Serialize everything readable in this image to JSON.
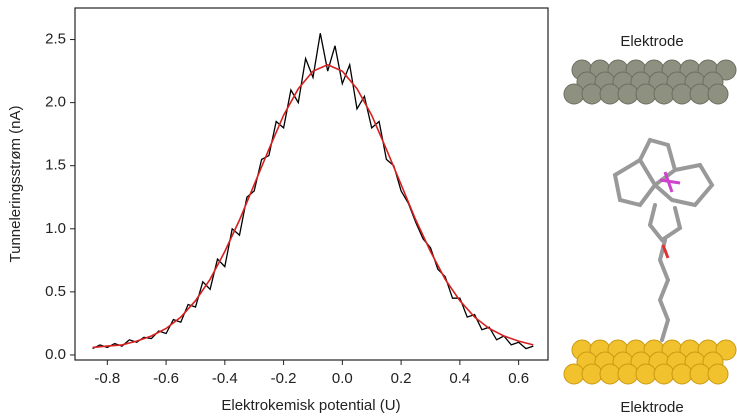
{
  "chart_data": {
    "type": "line",
    "xlabel": "Elektrokemisk potential (U)",
    "ylabel": "Tunneleringsstrøm (nA)",
    "xlim": [
      -0.91,
      0.7
    ],
    "ylim": [
      -0.04,
      2.75
    ],
    "xticks": [
      -0.8,
      -0.6,
      -0.4,
      -0.2,
      {
        "value": 0,
        "label": "0.0"
      },
      0.2,
      0.4,
      0.6
    ],
    "yticks": [
      {
        "value": 0,
        "label": "0.0"
      },
      0.5,
      {
        "value": 1,
        "label": "1.0"
      },
      1.5,
      {
        "value": 2,
        "label": "2.0"
      },
      2.5
    ],
    "series": [
      {
        "color": "#000000",
        "x": [
          -0.85,
          -0.825,
          -0.8,
          -0.775,
          -0.75,
          -0.725,
          -0.7,
          -0.675,
          -0.65,
          -0.625,
          -0.6,
          -0.575,
          -0.55,
          -0.525,
          -0.5,
          -0.475,
          -0.45,
          -0.425,
          -0.4,
          -0.375,
          -0.35,
          -0.325,
          -0.3,
          -0.275,
          -0.25,
          -0.225,
          -0.2,
          -0.175,
          -0.15,
          -0.125,
          -0.1,
          -0.075,
          -0.05,
          -0.025,
          0,
          0.025,
          0.05,
          0.075,
          0.1,
          0.125,
          0.15,
          0.175,
          0.2,
          0.225,
          0.25,
          0.275,
          0.3,
          0.325,
          0.35,
          0.375,
          0.4,
          0.425,
          0.45,
          0.475,
          0.5,
          0.525,
          0.55,
          0.575,
          0.6,
          0.625,
          0.65
        ],
        "values": [
          0.05,
          0.08,
          0.06,
          0.09,
          0.07,
          0.12,
          0.1,
          0.14,
          0.13,
          0.19,
          0.17,
          0.28,
          0.26,
          0.4,
          0.38,
          0.58,
          0.52,
          0.76,
          0.7,
          1.0,
          0.95,
          1.25,
          1.3,
          1.55,
          1.58,
          1.85,
          1.8,
          2.1,
          2.0,
          2.35,
          2.2,
          2.55,
          2.25,
          2.45,
          2.15,
          2.3,
          1.95,
          2.05,
          1.8,
          1.85,
          1.55,
          1.5,
          1.3,
          1.2,
          1.05,
          0.92,
          0.85,
          0.68,
          0.62,
          0.45,
          0.45,
          0.3,
          0.32,
          0.2,
          0.22,
          0.12,
          0.15,
          0.08,
          0.1,
          0.05,
          0.07
        ]
      },
      {
        "color": "#d62020",
        "x": [
          -0.85,
          -0.8,
          -0.75,
          -0.7,
          -0.65,
          -0.6,
          -0.55,
          -0.5,
          -0.45,
          -0.4,
          -0.35,
          -0.3,
          -0.25,
          -0.2,
          -0.15,
          -0.1,
          -0.05,
          0,
          0.05,
          0.1,
          0.15,
          0.2,
          0.25,
          0.3,
          0.35,
          0.4,
          0.45,
          0.5,
          0.55,
          0.6,
          0.65
        ],
        "values": [
          0.06,
          0.07,
          0.08,
          0.11,
          0.15,
          0.21,
          0.3,
          0.43,
          0.6,
          0.82,
          1.07,
          1.35,
          1.63,
          1.9,
          2.11,
          2.25,
          2.3,
          2.25,
          2.11,
          1.9,
          1.63,
          1.35,
          1.07,
          0.82,
          0.6,
          0.43,
          0.3,
          0.21,
          0.15,
          0.11,
          0.08
        ]
      }
    ],
    "annotations": [
      "Elektrode",
      "Elektrode"
    ]
  }
}
